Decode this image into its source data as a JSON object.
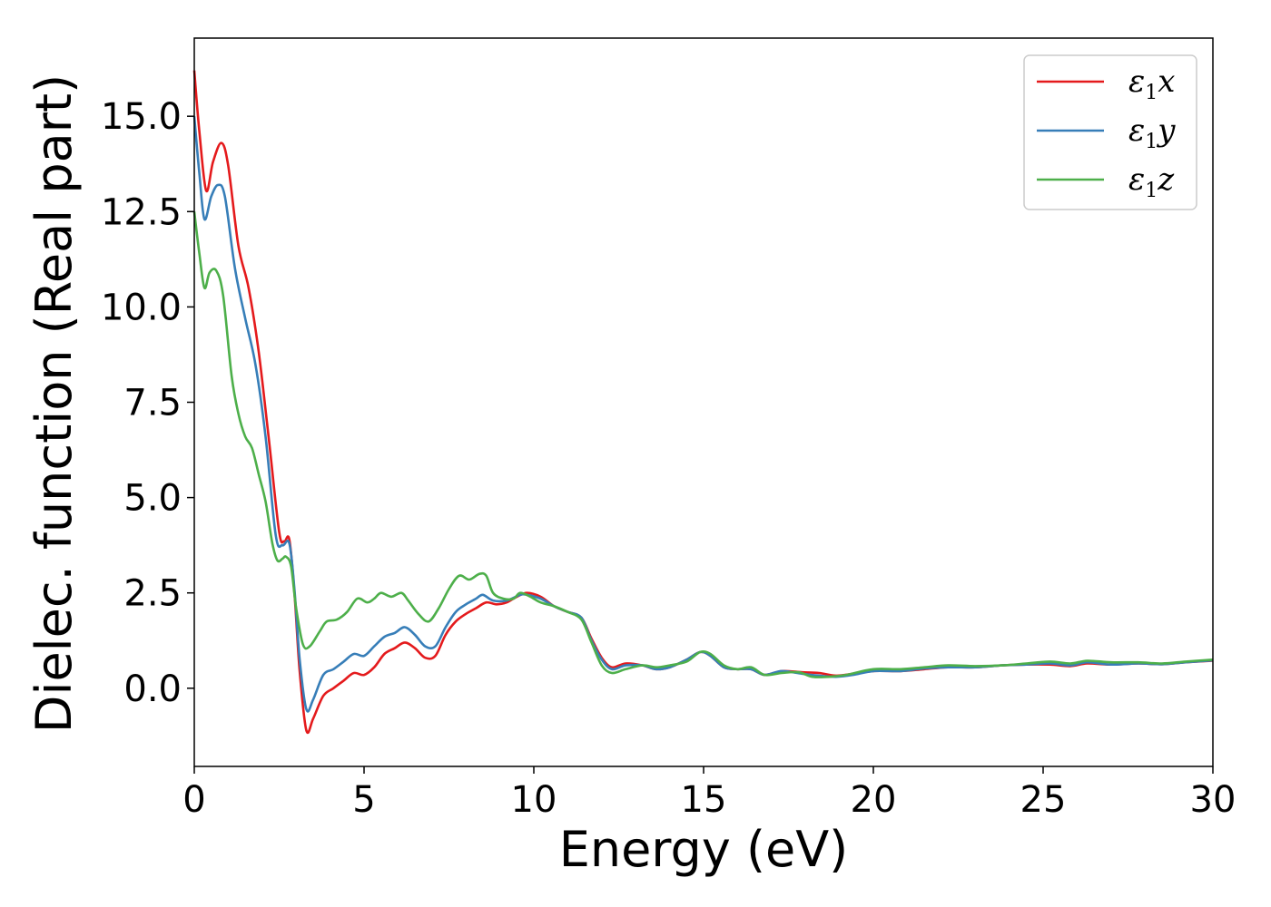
{
  "chart_data": {
    "type": "line",
    "title": "",
    "xlabel": "Energy (eV)",
    "ylabel": "Dielec. function (Real part)",
    "xlim": [
      0,
      30
    ],
    "ylim": [
      -2.05,
      17.05
    ],
    "x_ticks": [
      0,
      5,
      10,
      15,
      20,
      25,
      30
    ],
    "x_tick_labels": [
      "0",
      "5",
      "10",
      "15",
      "20",
      "25",
      "30"
    ],
    "y_ticks": [
      0.0,
      2.5,
      5.0,
      7.5,
      10.0,
      12.5,
      15.0
    ],
    "y_tick_labels": [
      "0.0",
      "2.5",
      "5.0",
      "7.5",
      "10.0",
      "12.5",
      "15.0"
    ],
    "grid": false,
    "legend_position": "top-right",
    "series": [
      {
        "name": "ε1x",
        "legend": {
          "base": "ε",
          "sub": "1",
          "var": "x"
        },
        "color": "#e41a1c",
        "points": [
          [
            0,
            16.2
          ],
          [
            0.15,
            14.6
          ],
          [
            0.35,
            13.05
          ],
          [
            0.55,
            13.8
          ],
          [
            0.8,
            14.3
          ],
          [
            1.0,
            13.7
          ],
          [
            1.3,
            11.6
          ],
          [
            1.6,
            10.5
          ],
          [
            1.9,
            8.8
          ],
          [
            2.2,
            6.5
          ],
          [
            2.5,
            4.1
          ],
          [
            2.65,
            3.85
          ],
          [
            2.8,
            3.9
          ],
          [
            2.95,
            2.5
          ],
          [
            3.1,
            0.5
          ],
          [
            3.3,
            -1.1
          ],
          [
            3.5,
            -0.8
          ],
          [
            3.8,
            -0.2
          ],
          [
            4.1,
            0.0
          ],
          [
            4.4,
            0.2
          ],
          [
            4.7,
            0.4
          ],
          [
            5.0,
            0.35
          ],
          [
            5.3,
            0.55
          ],
          [
            5.6,
            0.9
          ],
          [
            5.9,
            1.05
          ],
          [
            6.2,
            1.2
          ],
          [
            6.5,
            1.05
          ],
          [
            6.8,
            0.8
          ],
          [
            7.1,
            0.85
          ],
          [
            7.4,
            1.4
          ],
          [
            7.7,
            1.75
          ],
          [
            8.0,
            1.95
          ],
          [
            8.3,
            2.1
          ],
          [
            8.6,
            2.25
          ],
          [
            8.9,
            2.2
          ],
          [
            9.2,
            2.25
          ],
          [
            9.5,
            2.4
          ],
          [
            9.8,
            2.5
          ],
          [
            10.2,
            2.4
          ],
          [
            10.6,
            2.15
          ],
          [
            11.0,
            2.0
          ],
          [
            11.4,
            1.85
          ],
          [
            11.7,
            1.3
          ],
          [
            12.0,
            0.8
          ],
          [
            12.3,
            0.55
          ],
          [
            12.7,
            0.65
          ],
          [
            13.2,
            0.6
          ],
          [
            13.6,
            0.5
          ],
          [
            14.0,
            0.55
          ],
          [
            14.5,
            0.75
          ],
          [
            14.9,
            0.95
          ],
          [
            15.2,
            0.85
          ],
          [
            15.6,
            0.55
          ],
          [
            16.0,
            0.5
          ],
          [
            16.4,
            0.5
          ],
          [
            16.8,
            0.35
          ],
          [
            17.3,
            0.45
          ],
          [
            17.9,
            0.42
          ],
          [
            18.4,
            0.4
          ],
          [
            18.9,
            0.33
          ],
          [
            19.4,
            0.38
          ],
          [
            20.0,
            0.45
          ],
          [
            20.8,
            0.45
          ],
          [
            21.5,
            0.5
          ],
          [
            22.2,
            0.55
          ],
          [
            23.0,
            0.55
          ],
          [
            23.8,
            0.6
          ],
          [
            24.5,
            0.62
          ],
          [
            25.2,
            0.62
          ],
          [
            25.8,
            0.58
          ],
          [
            26.3,
            0.65
          ],
          [
            27.0,
            0.62
          ],
          [
            27.8,
            0.65
          ],
          [
            28.5,
            0.63
          ],
          [
            29.2,
            0.68
          ],
          [
            30.0,
            0.72
          ]
        ]
      },
      {
        "name": "ε1y",
        "legend": {
          "base": "ε",
          "sub": "1",
          "var": "y"
        },
        "color": "#377eb8",
        "points": [
          [
            0,
            15.0
          ],
          [
            0.15,
            13.5
          ],
          [
            0.3,
            12.3
          ],
          [
            0.5,
            12.9
          ],
          [
            0.7,
            13.2
          ],
          [
            0.9,
            12.9
          ],
          [
            1.2,
            11.0
          ],
          [
            1.5,
            9.7
          ],
          [
            1.8,
            8.5
          ],
          [
            2.1,
            6.6
          ],
          [
            2.4,
            4.0
          ],
          [
            2.6,
            3.75
          ],
          [
            2.8,
            3.8
          ],
          [
            2.95,
            2.6
          ],
          [
            3.1,
            0.8
          ],
          [
            3.3,
            -0.55
          ],
          [
            3.5,
            -0.3
          ],
          [
            3.8,
            0.35
          ],
          [
            4.1,
            0.5
          ],
          [
            4.4,
            0.7
          ],
          [
            4.7,
            0.9
          ],
          [
            5.0,
            0.85
          ],
          [
            5.3,
            1.1
          ],
          [
            5.6,
            1.35
          ],
          [
            5.9,
            1.45
          ],
          [
            6.2,
            1.6
          ],
          [
            6.5,
            1.4
          ],
          [
            6.8,
            1.1
          ],
          [
            7.1,
            1.1
          ],
          [
            7.4,
            1.6
          ],
          [
            7.7,
            2.0
          ],
          [
            8.0,
            2.2
          ],
          [
            8.3,
            2.35
          ],
          [
            8.5,
            2.45
          ],
          [
            8.8,
            2.3
          ],
          [
            9.2,
            2.3
          ],
          [
            9.6,
            2.45
          ],
          [
            9.8,
            2.45
          ],
          [
            10.2,
            2.35
          ],
          [
            10.6,
            2.15
          ],
          [
            11.0,
            2.0
          ],
          [
            11.4,
            1.85
          ],
          [
            11.7,
            1.25
          ],
          [
            12.0,
            0.75
          ],
          [
            12.3,
            0.5
          ],
          [
            12.7,
            0.6
          ],
          [
            13.2,
            0.6
          ],
          [
            13.6,
            0.5
          ],
          [
            14.0,
            0.55
          ],
          [
            14.5,
            0.75
          ],
          [
            14.9,
            0.95
          ],
          [
            15.2,
            0.85
          ],
          [
            15.6,
            0.55
          ],
          [
            16.0,
            0.5
          ],
          [
            16.4,
            0.5
          ],
          [
            16.8,
            0.35
          ],
          [
            17.3,
            0.45
          ],
          [
            17.9,
            0.38
          ],
          [
            18.4,
            0.33
          ],
          [
            18.9,
            0.3
          ],
          [
            19.4,
            0.35
          ],
          [
            20.0,
            0.45
          ],
          [
            20.8,
            0.45
          ],
          [
            21.5,
            0.52
          ],
          [
            22.2,
            0.55
          ],
          [
            23.0,
            0.55
          ],
          [
            23.8,
            0.6
          ],
          [
            24.5,
            0.62
          ],
          [
            25.2,
            0.65
          ],
          [
            25.8,
            0.6
          ],
          [
            26.3,
            0.68
          ],
          [
            27.0,
            0.62
          ],
          [
            27.8,
            0.65
          ],
          [
            28.5,
            0.63
          ],
          [
            29.2,
            0.68
          ],
          [
            30.0,
            0.73
          ]
        ]
      },
      {
        "name": "ε1z",
        "legend": {
          "base": "ε",
          "sub": "1",
          "var": "z"
        },
        "color": "#4daf4a",
        "points": [
          [
            0,
            12.5
          ],
          [
            0.15,
            11.4
          ],
          [
            0.3,
            10.5
          ],
          [
            0.45,
            10.9
          ],
          [
            0.65,
            10.95
          ],
          [
            0.85,
            10.3
          ],
          [
            1.1,
            8.2
          ],
          [
            1.3,
            7.2
          ],
          [
            1.5,
            6.6
          ],
          [
            1.7,
            6.3
          ],
          [
            1.9,
            5.6
          ],
          [
            2.1,
            4.9
          ],
          [
            2.3,
            3.8
          ],
          [
            2.45,
            3.35
          ],
          [
            2.6,
            3.4
          ],
          [
            2.7,
            3.45
          ],
          [
            2.85,
            3.2
          ],
          [
            3.0,
            2.1
          ],
          [
            3.2,
            1.15
          ],
          [
            3.4,
            1.1
          ],
          [
            3.7,
            1.5
          ],
          [
            3.9,
            1.75
          ],
          [
            4.2,
            1.8
          ],
          [
            4.5,
            2.0
          ],
          [
            4.8,
            2.35
          ],
          [
            5.1,
            2.25
          ],
          [
            5.3,
            2.35
          ],
          [
            5.5,
            2.5
          ],
          [
            5.8,
            2.4
          ],
          [
            6.1,
            2.5
          ],
          [
            6.3,
            2.3
          ],
          [
            6.6,
            1.95
          ],
          [
            6.9,
            1.75
          ],
          [
            7.2,
            2.1
          ],
          [
            7.5,
            2.6
          ],
          [
            7.8,
            2.95
          ],
          [
            8.1,
            2.85
          ],
          [
            8.4,
            3.0
          ],
          [
            8.6,
            2.95
          ],
          [
            8.8,
            2.5
          ],
          [
            9.1,
            2.35
          ],
          [
            9.4,
            2.35
          ],
          [
            9.6,
            2.5
          ],
          [
            9.9,
            2.4
          ],
          [
            10.2,
            2.25
          ],
          [
            10.6,
            2.15
          ],
          [
            11.0,
            2.0
          ],
          [
            11.4,
            1.8
          ],
          [
            11.7,
            1.2
          ],
          [
            12.0,
            0.6
          ],
          [
            12.3,
            0.4
          ],
          [
            12.7,
            0.5
          ],
          [
            13.2,
            0.6
          ],
          [
            13.6,
            0.55
          ],
          [
            14.0,
            0.6
          ],
          [
            14.5,
            0.7
          ],
          [
            14.9,
            0.95
          ],
          [
            15.2,
            0.9
          ],
          [
            15.6,
            0.6
          ],
          [
            16.0,
            0.5
          ],
          [
            16.4,
            0.55
          ],
          [
            16.8,
            0.35
          ],
          [
            17.3,
            0.4
          ],
          [
            17.8,
            0.42
          ],
          [
            18.2,
            0.3
          ],
          [
            18.7,
            0.3
          ],
          [
            19.2,
            0.35
          ],
          [
            20.0,
            0.5
          ],
          [
            20.8,
            0.5
          ],
          [
            21.5,
            0.55
          ],
          [
            22.2,
            0.6
          ],
          [
            23.0,
            0.58
          ],
          [
            23.8,
            0.6
          ],
          [
            24.5,
            0.65
          ],
          [
            25.2,
            0.7
          ],
          [
            25.8,
            0.65
          ],
          [
            26.3,
            0.72
          ],
          [
            27.0,
            0.68
          ],
          [
            27.8,
            0.68
          ],
          [
            28.5,
            0.65
          ],
          [
            29.2,
            0.7
          ],
          [
            30.0,
            0.75
          ]
        ]
      }
    ]
  }
}
